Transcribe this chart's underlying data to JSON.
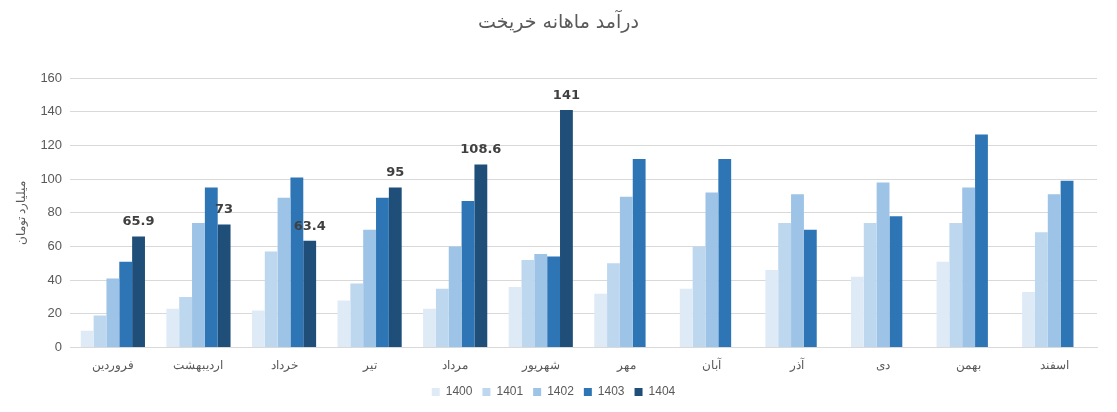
{
  "chart_data": {
    "type": "bar",
    "title": "درآمد ماهانه خریخت",
    "ylabel": "میلیارد تومان",
    "categories": [
      "فروردین",
      "اردیبهشت",
      "خرداد",
      "تیر",
      "مرداد",
      "شهریور",
      "مهر",
      "آبان",
      "آذر",
      "دی",
      "بهمن",
      "اسفند"
    ],
    "series": [
      {
        "name": "1400",
        "color": "#deebf7",
        "values": [
          10,
          23,
          22,
          28,
          23,
          36,
          32,
          35,
          46,
          42,
          51,
          33
        ]
      },
      {
        "name": "1401",
        "color": "#bdd7ee",
        "values": [
          19,
          30,
          57,
          38,
          35,
          52,
          50,
          60,
          74,
          74,
          74,
          68.5
        ]
      },
      {
        "name": "1402",
        "color": "#9dc3e6",
        "values": [
          41,
          74,
          89,
          70,
          60,
          55.5,
          89.5,
          92,
          91,
          98,
          95,
          91
        ]
      },
      {
        "name": "1403",
        "color": "#2e75b6",
        "values": [
          51,
          95,
          101,
          89,
          87,
          54,
          112,
          112,
          70,
          78,
          126.5,
          99
        ]
      },
      {
        "name": "1404",
        "color": "#1f4e79",
        "values": [
          65.9,
          73,
          63.4,
          95,
          108.6,
          141,
          null,
          null,
          null,
          null,
          null,
          null
        ],
        "value_labels": [
          "65.9",
          "73",
          "63.4",
          "95",
          "108.6",
          "141",
          null,
          null,
          null,
          null,
          null,
          null
        ]
      }
    ],
    "ylim": [
      0,
      160
    ],
    "yticks": [
      0,
      20,
      40,
      60,
      80,
      100,
      120,
      140,
      160
    ],
    "grid": "y",
    "legend": "bottom"
  }
}
